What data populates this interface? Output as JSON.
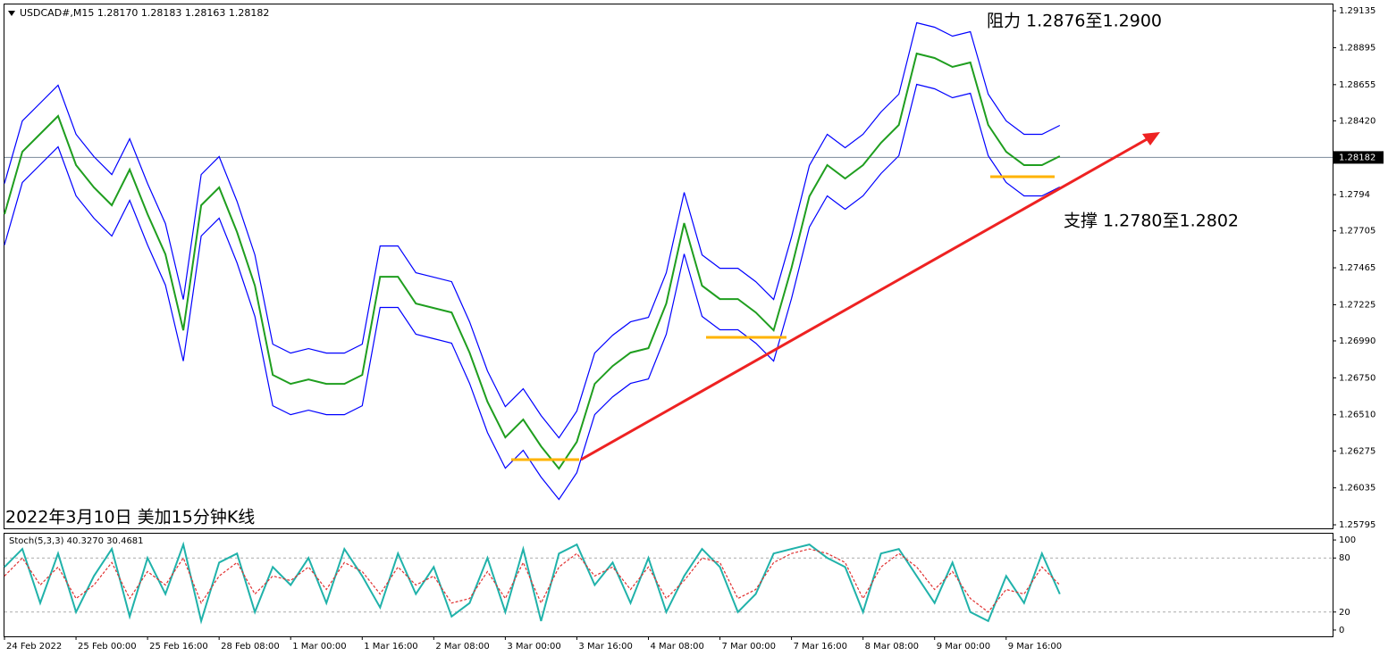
{
  "chart_data": [
    {
      "type": "line",
      "title": "USDCAD#,M15  1.28170 1.28183 1.28163 1.28182",
      "annotations": [
        "阻力 1.2876至1.2900",
        "支撑 1.2780至1.2802",
        "2022年3月10日 美加15分钟K线"
      ],
      "current_price": 1.28182,
      "xlim": [
        0,
        1188
      ],
      "ylim": [
        1.25772,
        1.29176
      ],
      "yticks": [
        1.29135,
        1.28895,
        1.28655,
        {
          "value": 1.2842,
          "label": "1.28420"
        },
        1.2794,
        1.27705,
        1.27465,
        1.27225,
        {
          "value": 1.2699,
          "label": "1.26990"
        },
        {
          "value": 1.2675,
          "label": "1.26750"
        },
        {
          "value": 1.2651,
          "label": "1.26510"
        },
        1.26275,
        1.26035,
        1.25795
      ],
      "x": [
        0,
        16,
        32,
        48,
        64,
        80,
        96,
        112,
        128,
        144,
        160,
        176,
        192,
        208,
        224,
        240,
        256,
        272,
        288,
        304,
        320,
        336,
        352,
        368,
        384,
        400,
        416,
        432,
        448,
        464,
        480,
        496,
        512,
        528,
        544,
        560,
        576,
        592,
        608,
        624,
        640,
        656,
        672,
        688,
        704,
        720,
        736,
        752,
        768,
        784,
        800,
        816,
        832,
        848,
        864,
        880,
        896,
        912,
        928,
        944
      ],
      "series": [
        {
          "color": "#1f9e1f",
          "values": [
            1.27813,
            1.28219,
            1.28335,
            1.28451,
            1.28132,
            1.27987,
            1.27871,
            1.28103,
            1.27813,
            1.27552,
            1.27059,
            1.27871,
            1.27987,
            1.27697,
            1.27349,
            1.26769,
            1.26711,
            1.2674,
            1.26711,
            1.26711,
            1.26769,
            1.27407,
            1.27407,
            1.27233,
            1.27204,
            1.27175,
            1.26914,
            1.26595,
            1.26363,
            1.26479,
            1.26305,
            1.2616,
            1.26334,
            1.26711,
            1.26827,
            1.26914,
            1.26943,
            1.27233,
            1.27755,
            1.27349,
            1.27262,
            1.27262,
            1.27175,
            1.27059,
            1.27465,
            1.27929,
            1.28132,
            1.28045,
            1.28132,
            1.28277,
            1.28393,
            1.28857,
            1.28828,
            1.2877,
            1.28799,
            1.28393,
            1.28219,
            1.28132,
            1.28132,
            1.2819
          ]
        },
        {
          "color": "#0000ff",
          "values": [
            1.28013,
            1.28419,
            1.28535,
            1.28651,
            1.28332,
            1.28187,
            1.28071,
            1.28303,
            1.28013,
            1.27752,
            1.27259,
            1.28071,
            1.28187,
            1.27897,
            1.27549,
            1.26969,
            1.26911,
            1.2694,
            1.26911,
            1.26911,
            1.26969,
            1.27607,
            1.27607,
            1.27433,
            1.27404,
            1.27375,
            1.27114,
            1.26795,
            1.26563,
            1.26679,
            1.26505,
            1.2636,
            1.26534,
            1.26911,
            1.27027,
            1.27114,
            1.27143,
            1.27433,
            1.27955,
            1.27549,
            1.27462,
            1.27462,
            1.27375,
            1.27259,
            1.27665,
            1.28129,
            1.28332,
            1.28245,
            1.28332,
            1.28477,
            1.28593,
            1.29057,
            1.29028,
            1.2897,
            1.28999,
            1.28593,
            1.28419,
            1.28332,
            1.28332,
            1.2839
          ]
        },
        {
          "color": "#0000ff",
          "values": [
            1.27613,
            1.28019,
            1.28135,
            1.28251,
            1.27932,
            1.27787,
            1.27671,
            1.27903,
            1.27613,
            1.27352,
            1.26859,
            1.27671,
            1.27787,
            1.27497,
            1.27149,
            1.26569,
            1.26511,
            1.2654,
            1.26511,
            1.26511,
            1.26569,
            1.27207,
            1.27207,
            1.27033,
            1.27004,
            1.26975,
            1.26714,
            1.26395,
            1.26163,
            1.26279,
            1.26105,
            1.2596,
            1.26134,
            1.26511,
            1.26627,
            1.26714,
            1.26743,
            1.27033,
            1.27555,
            1.27149,
            1.27062,
            1.27062,
            1.26975,
            1.26859,
            1.27265,
            1.27729,
            1.27932,
            1.27845,
            1.27932,
            1.28077,
            1.28193,
            1.28657,
            1.28628,
            1.2857,
            1.28599,
            1.28193,
            1.28019,
            1.27932,
            1.27932,
            1.2799
          ]
        }
      ]
    },
    {
      "type": "line",
      "title": "Stoch(5,3,3) 40.3270 30.4681",
      "xlim": [
        0,
        1188
      ],
      "ylim": [
        -7,
        107
      ],
      "yticks": [
        100,
        80,
        20,
        0
      ],
      "grid_levels": [
        80,
        20
      ],
      "xticks": [
        {
          "value": 0,
          "label": "24 Feb 2022"
        },
        {
          "value": 64,
          "label": "25 Feb 00:00"
        },
        {
          "value": 128,
          "label": "25 Feb 16:00"
        },
        {
          "value": 192,
          "label": "28 Feb 08:00"
        },
        {
          "value": 256,
          "label": "1 Mar 00:00"
        },
        {
          "value": 320,
          "label": "1 Mar 16:00"
        },
        {
          "value": 384,
          "label": "2 Mar 08:00"
        },
        {
          "value": 448,
          "label": "3 Mar 00:00"
        },
        {
          "value": 512,
          "label": "3 Mar 16:00"
        },
        {
          "value": 576,
          "label": "4 Mar 08:00"
        },
        {
          "value": 640,
          "label": "7 Mar 00:00"
        },
        {
          "value": 704,
          "label": "7 Mar 16:00"
        },
        {
          "value": 768,
          "label": "8 Mar 08:00"
        },
        {
          "value": 832,
          "label": "9 Mar 00:00"
        },
        {
          "value": 896,
          "label": "9 Mar 16:00"
        }
      ],
      "x": [
        0,
        16,
        32,
        48,
        64,
        80,
        96,
        112,
        128,
        144,
        160,
        176,
        192,
        208,
        224,
        240,
        256,
        272,
        288,
        304,
        320,
        336,
        352,
        368,
        384,
        400,
        416,
        432,
        448,
        464,
        480,
        496,
        512,
        528,
        544,
        560,
        576,
        592,
        608,
        624,
        640,
        656,
        672,
        688,
        704,
        720,
        736,
        752,
        768,
        784,
        800,
        816,
        832,
        848,
        864,
        880,
        896,
        912,
        928,
        944
      ],
      "series": [
        {
          "color": "#20b2aa",
          "values": [
            70,
            90,
            30,
            85,
            20,
            60,
            90,
            15,
            80,
            40,
            95,
            10,
            75,
            85,
            20,
            70,
            50,
            80,
            30,
            90,
            60,
            25,
            85,
            40,
            70,
            15,
            30,
            80,
            20,
            90,
            10,
            85,
            95,
            50,
            75,
            30,
            80,
            20,
            60,
            90,
            70,
            20,
            40,
            85,
            90,
            95,
            80,
            70,
            20,
            85,
            90,
            60,
            30,
            75,
            20,
            10,
            60,
            30,
            85,
            40
          ]
        },
        {
          "color": "#e03030",
          "dashed": true,
          "values": [
            60,
            80,
            50,
            70,
            35,
            50,
            75,
            35,
            65,
            50,
            80,
            30,
            60,
            75,
            40,
            60,
            55,
            70,
            45,
            75,
            65,
            40,
            70,
            50,
            60,
            30,
            35,
            65,
            35,
            75,
            30,
            70,
            85,
            60,
            70,
            45,
            70,
            35,
            55,
            80,
            75,
            35,
            45,
            75,
            85,
            90,
            85,
            75,
            35,
            70,
            85,
            70,
            45,
            65,
            35,
            20,
            45,
            40,
            70,
            50
          ]
        }
      ]
    }
  ]
}
